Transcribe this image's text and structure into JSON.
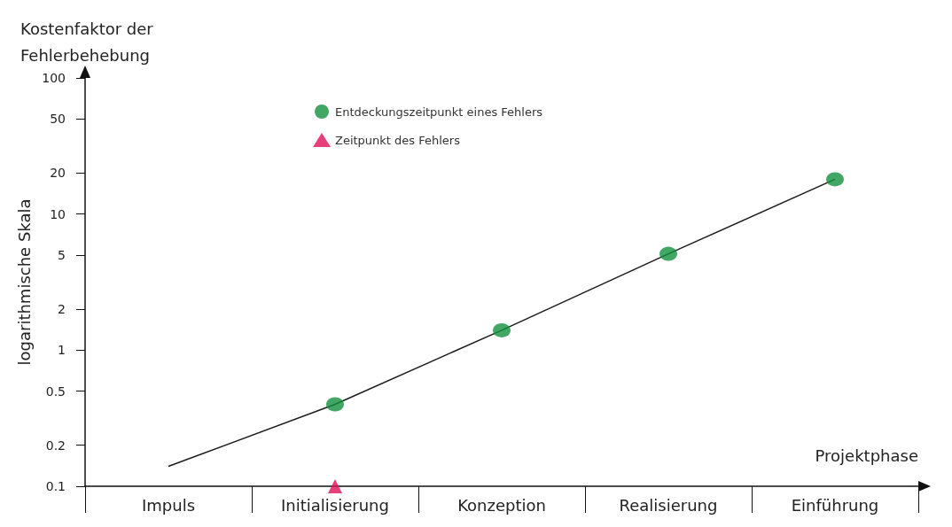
{
  "chart_data": {
    "type": "scatter",
    "title": "Kostenfaktor der Fehlerbehebung",
    "ylabel": "logarithmische Skala",
    "xlabel": "Projektphase",
    "categories": [
      "Impuls",
      "Initialisierung",
      "Konzeption",
      "Realisierung",
      "Einführung"
    ],
    "series": [
      {
        "name": "Entdeckungszeitpunkt eines Fehlers",
        "color": "#13913f",
        "marker": "circle",
        "values": [
          null,
          0.4,
          1.4,
          5.1,
          18
        ]
      },
      {
        "name": "Zeitpunkt des Fehlers",
        "color": "#e0105a",
        "marker": "triangle",
        "values": [
          null,
          0.1,
          null,
          null,
          null
        ]
      },
      {
        "type": "line",
        "color": "#1a1a1a",
        "marker": "none",
        "x": [
          "Impuls",
          "Initialisierung",
          "Konzeption",
          "Realisierung",
          "Einführung"
        ],
        "values": [
          0.14,
          0.4,
          1.4,
          5.1,
          18
        ]
      }
    ],
    "log": "y",
    "ylim": [
      0.1,
      100
    ],
    "yticks": [
      0.1,
      0.2,
      0.5,
      1,
      2,
      5,
      10,
      20,
      50,
      100
    ],
    "grid": false,
    "legend": "top"
  }
}
